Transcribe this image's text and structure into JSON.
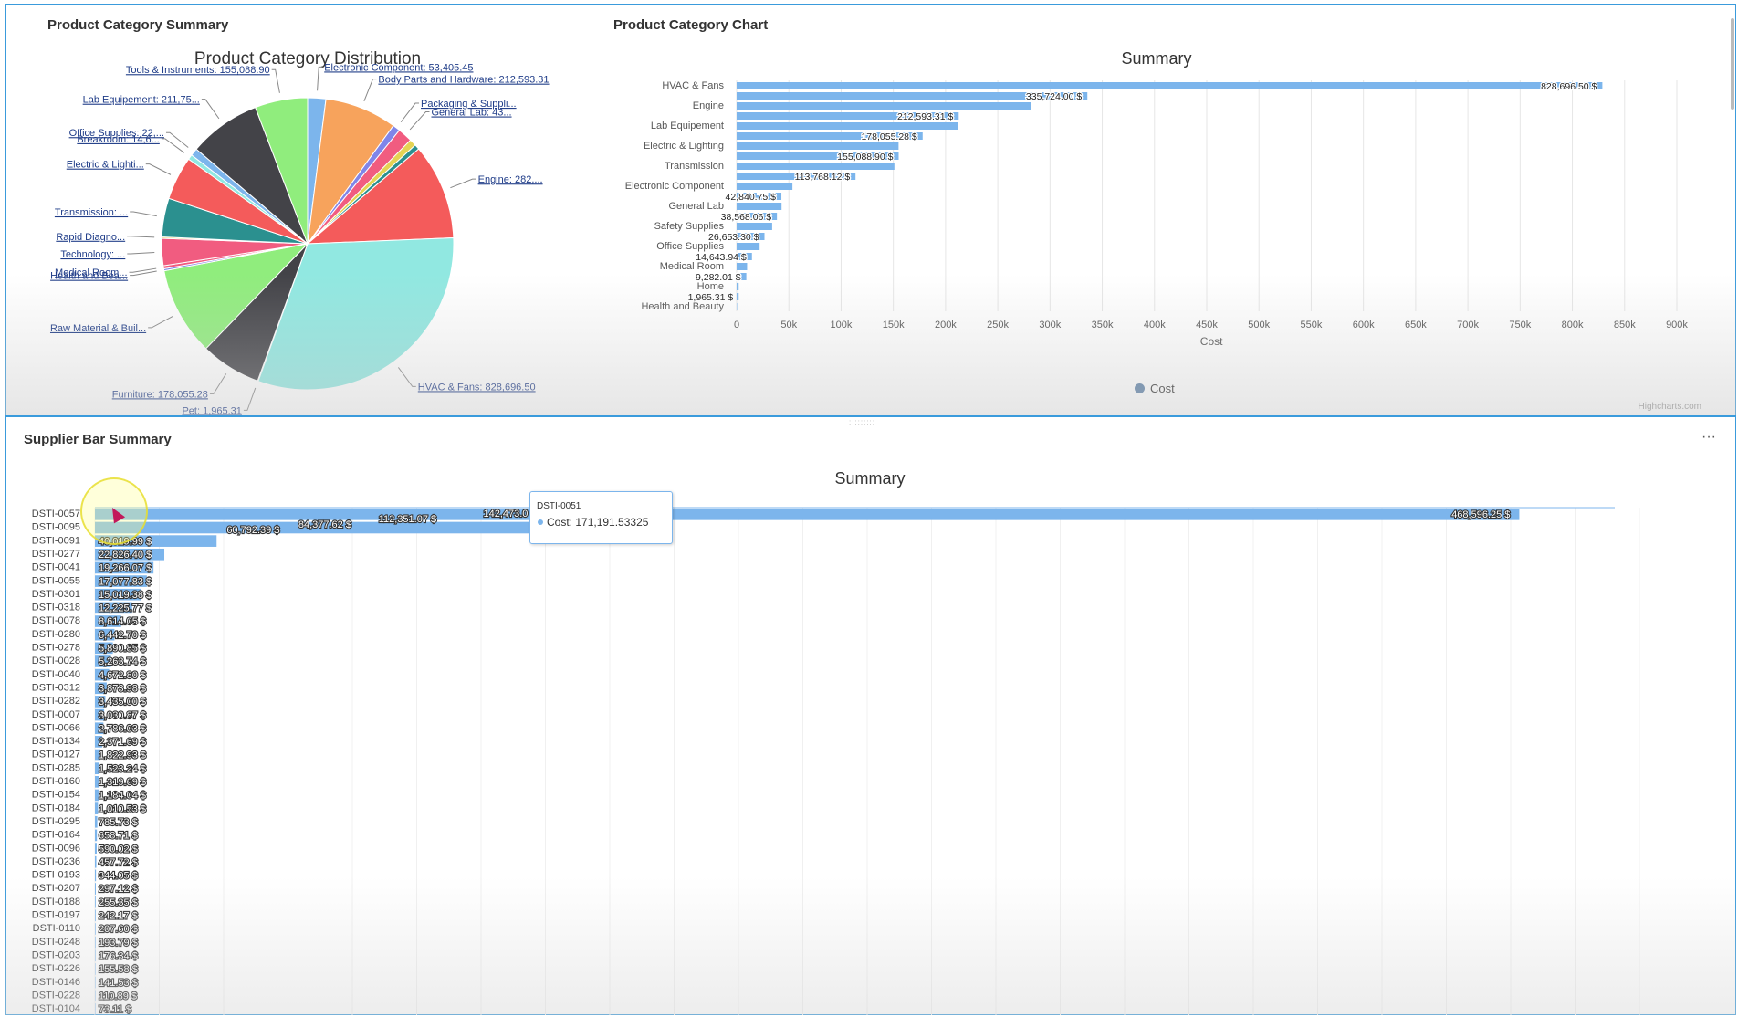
{
  "panels": {
    "summary_title": "Product Category Summary",
    "chart_title": "Product Category Chart",
    "supplier_title": "Supplier Bar Summary"
  },
  "credits": "Highcharts.com",
  "tooltip": {
    "header": "DSTI-0051",
    "label": "Cost: 171,191.53325"
  },
  "colors": {
    "accent": "#3a9bdc",
    "bar": "#7cb5ec"
  },
  "chart_data": [
    {
      "type": "pie",
      "title": "Product Category Distribution",
      "slices": [
        {
          "label": "Electronic Component: 53,405.45",
          "value": 53405.45,
          "color": "#7cb5ec"
        },
        {
          "label": "Body Parts and Hardware: 212,593.31",
          "value": 212593.31,
          "color": "#f7a35c"
        },
        {
          "label": "Packaging & Suppli...",
          "value": 22000,
          "color": "#8085e9"
        },
        {
          "label": "General Lab: 43...",
          "value": 43000,
          "color": "#f15c80"
        },
        {
          "label": "",
          "value": 20000,
          "color": "#e4d354"
        },
        {
          "label": "",
          "value": 15000,
          "color": "#2b908f"
        },
        {
          "label": "Engine: 282,...",
          "value": 282000,
          "color": "#f45b5b"
        },
        {
          "label": "HVAC & Fans: 828,696.50",
          "value": 828696.5,
          "color": "#91e8e1"
        },
        {
          "label": "Pet: 1,965.31",
          "value": 1965.31,
          "color": "#7cb5ec"
        },
        {
          "label": "Furniture: 178,055.28",
          "value": 178055.28,
          "color": "#434348"
        },
        {
          "label": "Raw Material & Buil...",
          "value": 260000,
          "color": "#90ed7d"
        },
        {
          "label": "Health and Bea...",
          "value": 6000,
          "color": "#8085e9"
        },
        {
          "label": "Medical Room...",
          "value": 9000,
          "color": "#f15c80"
        },
        {
          "label": "Technology: ...",
          "value": 80000,
          "color": "#f15c80"
        },
        {
          "label": "Rapid Diagno...",
          "value": 4000,
          "color": "#e4d354"
        },
        {
          "label": "Transmission: ...",
          "value": 113768.12,
          "color": "#2b908f"
        },
        {
          "label": "Electric & Lighti...",
          "value": 128000,
          "color": "#f45b5b"
        },
        {
          "label": "Breakroom: 14,6...",
          "value": 14643.94,
          "color": "#91e8e1"
        },
        {
          "label": "Office Supplies: 22,...",
          "value": 22000,
          "color": "#7cb5ec"
        },
        {
          "label": "Lab Equipement: 211,75...",
          "value": 211750,
          "color": "#434348"
        },
        {
          "label": "Tools & Instruments: 155,088.90",
          "value": 155088.9,
          "color": "#90ed7d"
        }
      ]
    },
    {
      "type": "bar",
      "title": "Summary",
      "categories": [
        "HVAC & Fans",
        "",
        "Engine",
        "",
        "Lab Equipement",
        "",
        "Electric & Lighting",
        "",
        "Transmission",
        "",
        "Electronic Component",
        "",
        "General Lab",
        "",
        "Safety Supplies",
        "",
        "Office Supplies",
        "",
        "Medical Room",
        "",
        "Home",
        "",
        "Health and Beauty"
      ],
      "values": [
        828696.5,
        335724.0,
        282000,
        212593.31,
        211750,
        178055.28,
        155000,
        155088.9,
        151000,
        113768.12,
        53405.45,
        42840.75,
        43000,
        38568.06,
        34000,
        26653.3,
        22000,
        14643.94,
        10000,
        9282.01,
        1965.31,
        1965.31,
        0
      ],
      "data_labels": [
        "828,696.50 $",
        "335,724.00 $",
        "",
        "212,593.31 $",
        "",
        "178,055.28 $",
        "",
        "155,088.90 $",
        "",
        "113,768.12 $",
        "",
        "42,840.75 $",
        "",
        "38,568.06 $",
        "",
        "26,653.30 $",
        "",
        "14,643.94 $",
        "",
        "9,282.01 $",
        "",
        "1,965.31 $",
        ""
      ],
      "xlabel": "Cost",
      "xticks": [
        "0",
        "50k",
        "100k",
        "150k",
        "200k",
        "250k",
        "300k",
        "350k",
        "400k",
        "450k",
        "500k",
        "550k",
        "600k",
        "650k",
        "700k",
        "750k",
        "800k",
        "850k",
        "900k"
      ],
      "xlim": [
        0,
        900000
      ],
      "legend": [
        "Cost"
      ]
    },
    {
      "type": "bar",
      "title": "Summary",
      "categories": [
        "DSTI-0057",
        "DSTI-0095",
        "DSTI-0091",
        "DSTI-0277",
        "DSTI-0041",
        "DSTI-0055",
        "DSTI-0301",
        "DSTI-0318",
        "DSTI-0078",
        "DSTI-0280",
        "DSTI-0278",
        "DSTI-0028",
        "DSTI-0040",
        "DSTI-0312",
        "DSTI-0282",
        "DSTI-0007",
        "DSTI-0066",
        "DSTI-0134",
        "DSTI-0127",
        "DSTI-0285",
        "DSTI-0160",
        "DSTI-0154",
        "DSTI-0184",
        "DSTI-0295",
        "DSTI-0164",
        "DSTI-0096",
        "DSTI-0236",
        "DSTI-0193",
        "DSTI-0207",
        "DSTI-0188",
        "DSTI-0197",
        "DSTI-0110",
        "DSTI-0248",
        "DSTI-0203",
        "DSTI-0226",
        "DSTI-0146",
        "DSTI-0228",
        "DSTI-0104"
      ],
      "values": [
        468596.25,
        171191.53,
        40019.99,
        22826.4,
        19266.07,
        17077.83,
        15019.38,
        12225.77,
        8614.05,
        6442.7,
        5890.85,
        5263.74,
        4672.8,
        3873.98,
        3435.0,
        3030.87,
        2786.03,
        2371.69,
        1822.93,
        1523.24,
        1319.69,
        1184.04,
        1010.53,
        785.73,
        658.71,
        590.02,
        457.72,
        344.05,
        297.12,
        255.35,
        242.17,
        207.6,
        193.79,
        176.34,
        155.58,
        141.53,
        110.89,
        73.11
      ],
      "data_labels": [
        "468,596.25 $",
        "",
        "40,019.99 $",
        "22,826.40 $",
        "19,266.07 $",
        "17,077.83 $",
        "15,019.38 $",
        "12,225.77 $",
        "8,614.05 $",
        "6,442.70 $",
        "5,890.85 $",
        "5,263.74 $",
        "4,672.80 $",
        "3,873.98 $",
        "3,435.00 $",
        "3,030.87 $",
        "2,786.03 $",
        "2,371.69 $",
        "1,822.93 $",
        "1,523.24 $",
        "1,319.69 $",
        "1,184.04 $",
        "1,010.53 $",
        "785.73 $",
        "658.71 $",
        "590.02 $",
        "457.72 $",
        "344.05 $",
        "297.12 $",
        "255.35 $",
        "242.17 $",
        "207.60 $",
        "193.79 $",
        "176.34 $",
        "155.58 $",
        "141.53 $",
        "110.89 $",
        "73.11 $"
      ],
      "extra_labels": [
        "60,792.39 $",
        "84,377.62 $",
        "112,351.07 $",
        "142,473.0"
      ],
      "extra_label_values": [
        60792.39,
        84377.62,
        112351.07,
        142473.0
      ],
      "xlim": [
        0,
        500000
      ]
    }
  ]
}
